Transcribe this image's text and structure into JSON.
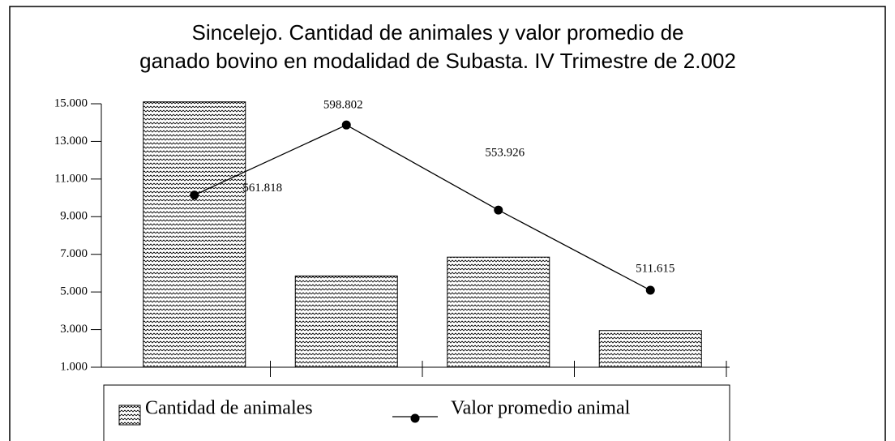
{
  "chart_data": {
    "type": "bar-line",
    "title": [
      "Sincelejo. Cantidad de animales y valor promedio de",
      "ganado bovino en modalidad de Subasta. IV Trimestre de 2.002"
    ],
    "categories": [
      null,
      null,
      null,
      null
    ],
    "series": [
      {
        "name": "Cantidad de animales",
        "type": "bar",
        "color": "#000000",
        "values": [
          15100,
          5850,
          6850,
          2950
        ]
      },
      {
        "name": "Valor promedio animal",
        "type": "line",
        "color": "#000000",
        "axis": "y2",
        "values": [
          561818,
          598802,
          553926,
          511615
        ],
        "value_labels": [
          "561.818",
          "598.802",
          "553.926",
          "511.615"
        ]
      }
    ],
    "ylim": [
      1000,
      15000
    ],
    "yticks": [
      {
        "value": 1000,
        "label": "1.000"
      },
      {
        "value": 3000,
        "label": "3.000"
      },
      {
        "value": 5000,
        "label": "5.000"
      },
      {
        "value": 7000,
        "label": "7.000"
      },
      {
        "value": 9000,
        "label": "9.000"
      },
      {
        "value": 11000,
        "label": "11.000"
      },
      {
        "value": 13000,
        "label": "13.000"
      },
      {
        "value": 15000,
        "label": "15.000"
      }
    ],
    "y2lim": [
      471000,
      610000
    ],
    "grid": false,
    "legend": "bottom"
  }
}
